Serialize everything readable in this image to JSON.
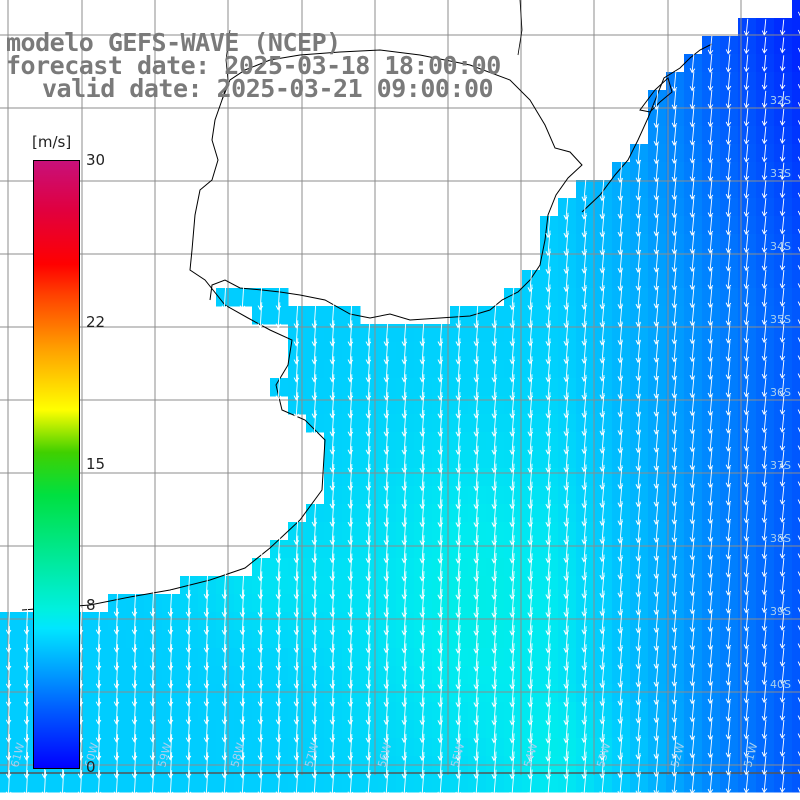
{
  "title": {
    "line1": "modelo GEFS-WAVE (NCEP)",
    "line2": "forecast date: 2025-03-18 18:00:00",
    "line3": "valid date: 2025-03-21 09:00:00"
  },
  "colorbar": {
    "unit": "[m/s]",
    "min": 0,
    "max": 30,
    "ticks": [
      "30",
      "22",
      "15",
      "8",
      "0"
    ],
    "tick_values": [
      30,
      22,
      15,
      8,
      0
    ],
    "colors": [
      "#0000ff",
      "#00aaff",
      "#00f0e0",
      "#00e040",
      "#ffff00",
      "#ff0000",
      "#c8107a"
    ]
  },
  "map": {
    "lat_labels": [
      "32S",
      "33S",
      "34S",
      "35S",
      "36S",
      "37S",
      "38S",
      "39S",
      "40S"
    ],
    "lon_labels": [
      "61W",
      "60W",
      "59W",
      "58W",
      "57W",
      "56W",
      "55W",
      "54W",
      "53W",
      "52W",
      "51W"
    ],
    "arrow_color": "#ffffff",
    "land_color": "#ffffff",
    "grid_color": "#8c8c8c",
    "coast_color": "#000000",
    "wind_direction": "toward south-southwest",
    "dominant_speed_range_mps": [
      5,
      9
    ]
  }
}
